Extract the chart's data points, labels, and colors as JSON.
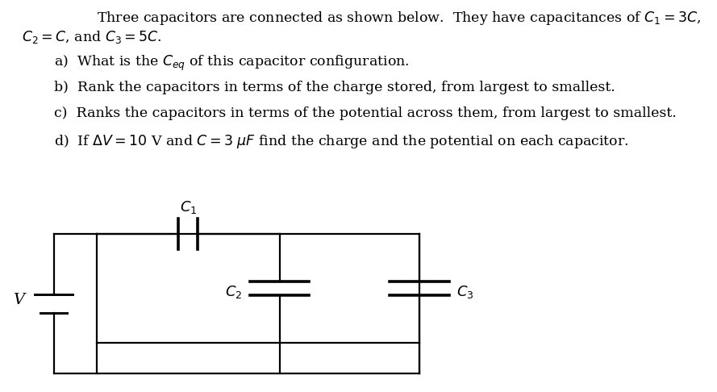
{
  "background_color": "#ffffff",
  "title_line1": "Three capacitors are connected as shown below.  They have capacitances of $C_1 = 3C$,",
  "title_line2": "$C_2 = C$, and $C_3 = 5C$.",
  "question_a": "a)  What is the $C_{eq}$ of this capacitor configuration.",
  "question_b": "b)  Rank the capacitors in terms of the charge stored, from largest to smallest.",
  "question_c": "c)  Ranks the capacitors in terms of the potential across them, from largest to smallest.",
  "question_d": "d)  If $\\Delta V = 10$ V and $C = 3$ $\\mu F$ find the charge and the potential on each capacitor.",
  "text_color": "#000000",
  "font_size_text": 12.5
}
